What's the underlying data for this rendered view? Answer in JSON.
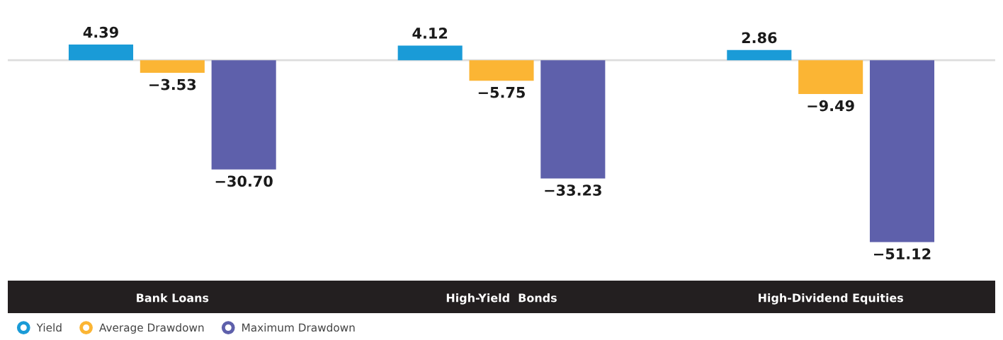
{
  "chart_data": {
    "type": "bar",
    "categories": [
      "Bank Loans",
      "High-Yield  Bonds",
      "High-Dividend Equities"
    ],
    "series": [
      {
        "name": "Yield",
        "color": "#1a9bd7",
        "values": [
          4.39,
          4.12,
          2.86
        ],
        "value_labels": [
          "4.39",
          "4.12",
          "2.86"
        ]
      },
      {
        "name": "Average Drawdown",
        "color": "#fbb534",
        "values": [
          -3.53,
          -5.75,
          -9.49
        ],
        "value_labels": [
          "−3.53",
          "−5.75",
          "−9.49"
        ]
      },
      {
        "name": "Maximum Drawdown",
        "color": "#5e60ab",
        "values": [
          -30.7,
          -33.23,
          -51.12
        ],
        "value_labels": [
          "−30.70",
          "−33.23",
          "−51.12"
        ]
      }
    ],
    "legend": "bottom",
    "tick_labels": "x",
    "grid": false,
    "marker": "circle"
  }
}
